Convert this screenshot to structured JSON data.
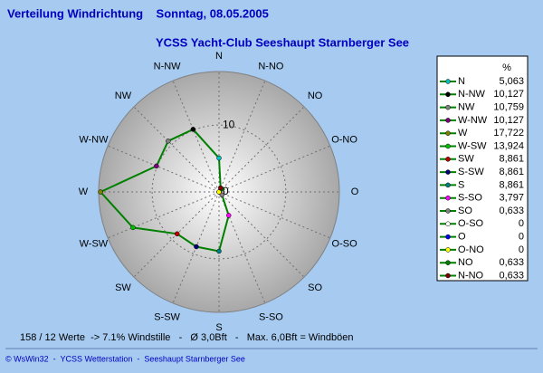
{
  "chart_data": {
    "type": "radar",
    "title": "Verteilung Windrichtung    Sonntag, 08.05.2005",
    "subtitle": "YCSS Yacht-Club Seeshaupt Starnberger See",
    "direction": "counterclockwise",
    "categories": [
      "N",
      "N-NW",
      "NW",
      "W-NW",
      "W",
      "W-SW",
      "SW",
      "S-SW",
      "S",
      "S-SO",
      "SO",
      "O-SO",
      "O",
      "O-NO",
      "NO",
      "N-NO"
    ],
    "values": [
      5.063,
      10.127,
      10.759,
      10.127,
      17.722,
      13.924,
      8.861,
      8.861,
      8.861,
      3.797,
      0.633,
      0,
      0,
      0,
      0.633,
      0.633
    ],
    "value_labels": [
      "5,063",
      "10,127",
      "10,759",
      "10,127",
      "17,722",
      "13,924",
      "8,861",
      "8,861",
      "8,861",
      "3,797",
      "0,633",
      "0",
      "0",
      "0",
      "0,633",
      "0,633"
    ],
    "marker_colors": [
      "#00c0c0",
      "#000000",
      "#808080",
      "#800080",
      "#808000",
      "#00c000",
      "#c00000",
      "#000080",
      "#008080",
      "#ff00ff",
      "#808080",
      "#ffffff",
      "#0000ff",
      "#ffff00",
      "#008000",
      "#800000"
    ],
    "color": "#008000",
    "rlim": [
      0,
      18
    ],
    "rticks": [
      0,
      10
    ],
    "legend_header": "%",
    "footer": "158 / 12 Werte  -> 7.1% Windstille   -   Ø 3,0Bft   -   Max. 6,0Bft = Windböen",
    "credit": "© WsWin32  -  YCSS Wetterstation  -  Seeshaupt Starnberger See"
  }
}
